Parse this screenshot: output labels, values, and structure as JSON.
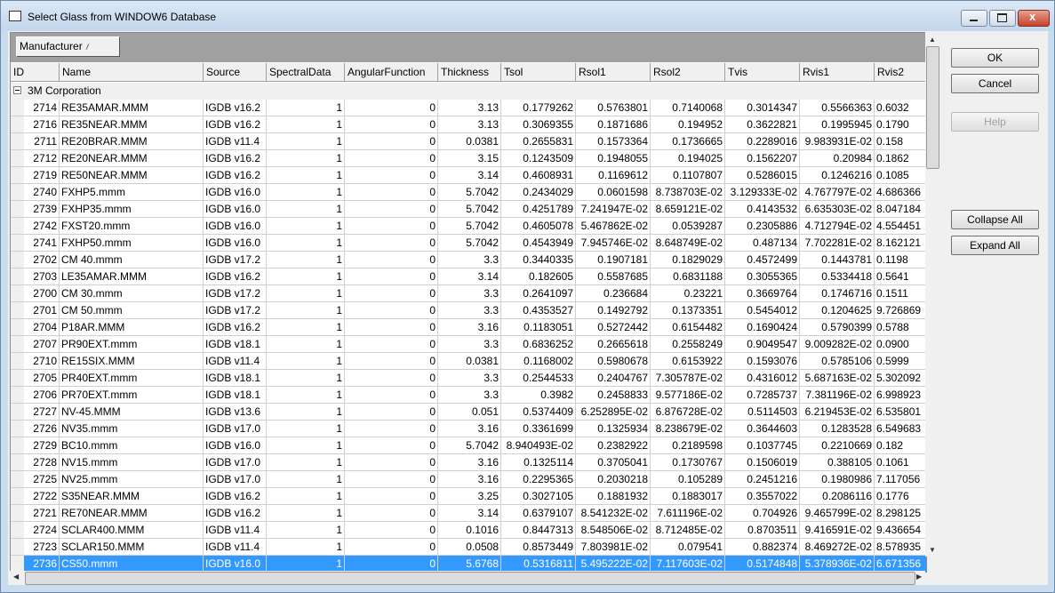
{
  "window": {
    "title": "Select Glass from WINDOW6 Database"
  },
  "group_by": "Manufacturer",
  "table": {
    "columns": [
      "ID",
      "Name",
      "Source",
      "SpectralData",
      "AngularFunction",
      "Thickness",
      "Tsol",
      "Rsol1",
      "Rsol2",
      "Tvis",
      "Rvis1",
      "Rvis2"
    ],
    "groups": [
      {
        "name": "3M Corporation",
        "rows": [
          [
            "2714",
            "RE35AMAR.MMM",
            "IGDB v16.2",
            "1",
            "0",
            "3.13",
            "0.1779262",
            "0.5763801",
            "0.7140068",
            "0.3014347",
            "0.5566363",
            "0.6032"
          ],
          [
            "2716",
            "RE35NEAR.MMM",
            "IGDB v16.2",
            "1",
            "0",
            "3.13",
            "0.3069355",
            "0.1871686",
            "0.194952",
            "0.3622821",
            "0.1995945",
            "0.1790"
          ],
          [
            "2711",
            "RE20BRAR.MMM",
            "IGDB v11.4",
            "1",
            "0",
            "0.0381",
            "0.2655831",
            "0.1573364",
            "0.1736665",
            "0.2289016",
            "9.983931E-02",
            "0.158"
          ],
          [
            "2712",
            "RE20NEAR.MMM",
            "IGDB v16.2",
            "1",
            "0",
            "3.15",
            "0.1243509",
            "0.1948055",
            "0.194025",
            "0.1562207",
            "0.20984",
            "0.1862"
          ],
          [
            "2719",
            "RE50NEAR.MMM",
            "IGDB v16.2",
            "1",
            "0",
            "3.14",
            "0.4608931",
            "0.1169612",
            "0.1107807",
            "0.5286015",
            "0.1246216",
            "0.1085"
          ],
          [
            "2740",
            "FXHP5.mmm",
            "IGDB v16.0",
            "1",
            "0",
            "5.7042",
            "0.2434029",
            "0.0601598",
            "8.738703E-02",
            "3.129333E-02",
            "4.767797E-02",
            "4.686366"
          ],
          [
            "2739",
            "FXHP35.mmm",
            "IGDB v16.0",
            "1",
            "0",
            "5.7042",
            "0.4251789",
            "7.241947E-02",
            "8.659121E-02",
            "0.4143532",
            "6.635303E-02",
            "8.047184"
          ],
          [
            "2742",
            "FXST20.mmm",
            "IGDB v16.0",
            "1",
            "0",
            "5.7042",
            "0.4605078",
            "5.467862E-02",
            "0.0539287",
            "0.2305886",
            "4.712794E-02",
            "4.554451"
          ],
          [
            "2741",
            "FXHP50.mmm",
            "IGDB v16.0",
            "1",
            "0",
            "5.7042",
            "0.4543949",
            "7.945746E-02",
            "8.648749E-02",
            "0.487134",
            "7.702281E-02",
            "8.162121"
          ],
          [
            "2702",
            "CM 40.mmm",
            "IGDB v17.2",
            "1",
            "0",
            "3.3",
            "0.3440335",
            "0.1907181",
            "0.1829029",
            "0.4572499",
            "0.1443781",
            "0.1198"
          ],
          [
            "2703",
            "LE35AMAR.MMM",
            "IGDB v16.2",
            "1",
            "0",
            "3.14",
            "0.182605",
            "0.5587685",
            "0.6831188",
            "0.3055365",
            "0.5334418",
            "0.5641"
          ],
          [
            "2700",
            "CM 30.mmm",
            "IGDB v17.2",
            "1",
            "0",
            "3.3",
            "0.2641097",
            "0.236684",
            "0.23221",
            "0.3669764",
            "0.1746716",
            "0.1511"
          ],
          [
            "2701",
            "CM 50.mmm",
            "IGDB v17.2",
            "1",
            "0",
            "3.3",
            "0.4353527",
            "0.1492792",
            "0.1373351",
            "0.5454012",
            "0.1204625",
            "9.726869"
          ],
          [
            "2704",
            "P18AR.MMM",
            "IGDB v16.2",
            "1",
            "0",
            "3.16",
            "0.1183051",
            "0.5272442",
            "0.6154482",
            "0.1690424",
            "0.5790399",
            "0.5788"
          ],
          [
            "2707",
            "PR90EXT.mmm",
            "IGDB v18.1",
            "1",
            "0",
            "3.3",
            "0.6836252",
            "0.2665618",
            "0.2558249",
            "0.9049547",
            "9.009282E-02",
            "0.0900"
          ],
          [
            "2710",
            "RE15SIX.MMM",
            "IGDB v11.4",
            "1",
            "0",
            "0.0381",
            "0.1168002",
            "0.5980678",
            "0.6153922",
            "0.1593076",
            "0.5785106",
            "0.5999"
          ],
          [
            "2705",
            "PR40EXT.mmm",
            "IGDB v18.1",
            "1",
            "0",
            "3.3",
            "0.2544533",
            "0.2404767",
            "7.305787E-02",
            "0.4316012",
            "5.687163E-02",
            "5.302092"
          ],
          [
            "2706",
            "PR70EXT.mmm",
            "IGDB v18.1",
            "1",
            "0",
            "3.3",
            "0.3982",
            "0.2458833",
            "9.577186E-02",
            "0.7285737",
            "7.381196E-02",
            "6.998923"
          ],
          [
            "2727",
            "NV-45.MMM",
            "IGDB v13.6",
            "1",
            "0",
            "0.051",
            "0.5374409",
            "6.252895E-02",
            "6.876728E-02",
            "0.5114503",
            "6.219453E-02",
            "6.535801"
          ],
          [
            "2726",
            "NV35.mmm",
            "IGDB v17.0",
            "1",
            "0",
            "3.16",
            "0.3361699",
            "0.1325934",
            "8.238679E-02",
            "0.3644603",
            "0.1283528",
            "6.549683"
          ],
          [
            "2729",
            "BC10.mmm",
            "IGDB v16.0",
            "1",
            "0",
            "5.7042",
            "8.940493E-02",
            "0.2382922",
            "0.2189598",
            "0.1037745",
            "0.2210669",
            "0.182"
          ],
          [
            "2728",
            "NV15.mmm",
            "IGDB v17.0",
            "1",
            "0",
            "3.16",
            "0.1325114",
            "0.3705041",
            "0.1730767",
            "0.1506019",
            "0.388105",
            "0.1061"
          ],
          [
            "2725",
            "NV25.mmm",
            "IGDB v17.0",
            "1",
            "0",
            "3.16",
            "0.2295365",
            "0.2030218",
            "0.105289",
            "0.2451216",
            "0.1980986",
            "7.117056"
          ],
          [
            "2722",
            "S35NEAR.MMM",
            "IGDB v16.2",
            "1",
            "0",
            "3.25",
            "0.3027105",
            "0.1881932",
            "0.1883017",
            "0.3557022",
            "0.2086116",
            "0.1776"
          ],
          [
            "2721",
            "RE70NEAR.MMM",
            "IGDB v16.2",
            "1",
            "0",
            "3.14",
            "0.6379107",
            "8.541232E-02",
            "7.611196E-02",
            "0.704926",
            "9.465799E-02",
            "8.298125"
          ],
          [
            "2724",
            "SCLAR400.MMM",
            "IGDB v11.4",
            "1",
            "0",
            "0.1016",
            "0.8447313",
            "8.548506E-02",
            "8.712485E-02",
            "0.8703511",
            "9.416591E-02",
            "9.436654"
          ],
          [
            "2723",
            "SCLAR150.MMM",
            "IGDB v11.4",
            "1",
            "0",
            "0.0508",
            "0.8573449",
            "7.803981E-02",
            "0.079541",
            "0.882374",
            "8.469272E-02",
            "8.578935"
          ],
          [
            "2736",
            "CS50.mmm",
            "IGDB v16.0",
            "1",
            "0",
            "5.6768",
            "0.5316811",
            "5.495222E-02",
            "7.117603E-02",
            "0.5174848",
            "5.378936E-02",
            "6.671356"
          ]
        ]
      }
    ]
  },
  "buttons": [
    "OK",
    "Cancel",
    "Help",
    "Collapse All",
    "Expand All"
  ]
}
